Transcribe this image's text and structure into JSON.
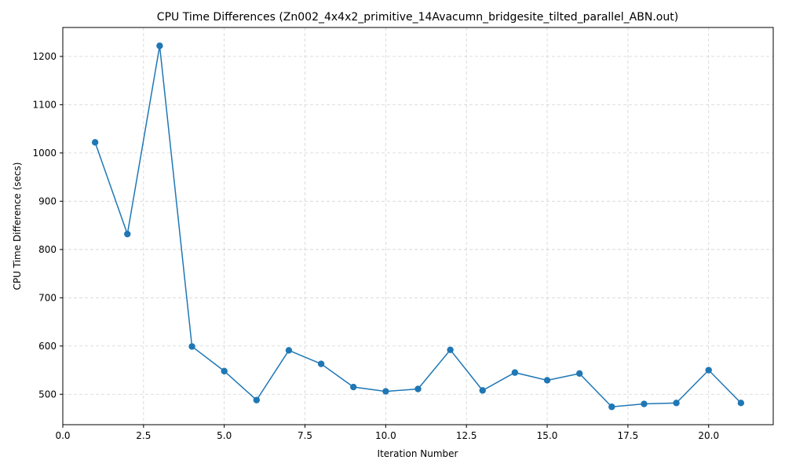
{
  "chart_data": {
    "type": "line",
    "title": "CPU Time Differences (Zn002_4x4x2_primitive_14Avacumn_bridgesite_tilted_parallel_ABN.out)",
    "xlabel": "Iteration Number",
    "ylabel": "CPU Time Difference (secs)",
    "xlim": [
      0,
      22.0
    ],
    "ylim": [
      437,
      1260
    ],
    "xticks": [
      0.0,
      2.5,
      5.0,
      7.5,
      10.0,
      12.5,
      15.0,
      17.5,
      20.0
    ],
    "xtick_labels": [
      "0.0",
      "2.5",
      "5.0",
      "7.5",
      "10.0",
      "12.5",
      "15.0",
      "17.5",
      "20.0"
    ],
    "yticks": [
      500,
      600,
      700,
      800,
      900,
      1000,
      1100,
      1200
    ],
    "ytick_labels": [
      "500",
      "600",
      "700",
      "800",
      "900",
      "1000",
      "1100",
      "1200"
    ],
    "grid": true,
    "series": [
      {
        "color": "#1f77b4",
        "marker": "circle",
        "x": [
          1,
          2,
          3,
          4,
          5,
          6,
          7,
          8,
          9,
          10,
          11,
          12,
          13,
          14,
          15,
          16,
          17,
          18,
          19,
          20,
          21
        ],
        "values": [
          1022,
          832,
          1222,
          599,
          548,
          488,
          591,
          563,
          515,
          506,
          511,
          592,
          508,
          545,
          529,
          543,
          474,
          480,
          482,
          550,
          482
        ]
      }
    ]
  }
}
